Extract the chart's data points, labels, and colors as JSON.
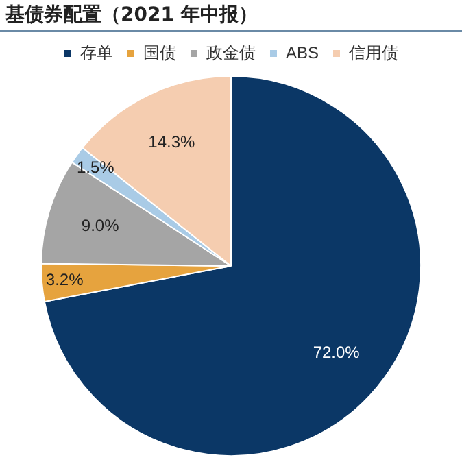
{
  "chart_data": {
    "type": "pie",
    "title": "基债券配置（2021 年中报）",
    "categories": [
      "存单",
      "国债",
      "政金债",
      "ABS",
      "信用债"
    ],
    "values": [
      72.0,
      3.2,
      9.0,
      1.5,
      14.3
    ],
    "colors": [
      "#0b3766",
      "#e6a33e",
      "#a5a5a5",
      "#a9cbe6",
      "#f5cdb0"
    ],
    "value_labels": [
      "72.0%",
      "3.2%",
      "9.0%",
      "1.5%",
      "14.3%"
    ],
    "legend": "top"
  }
}
